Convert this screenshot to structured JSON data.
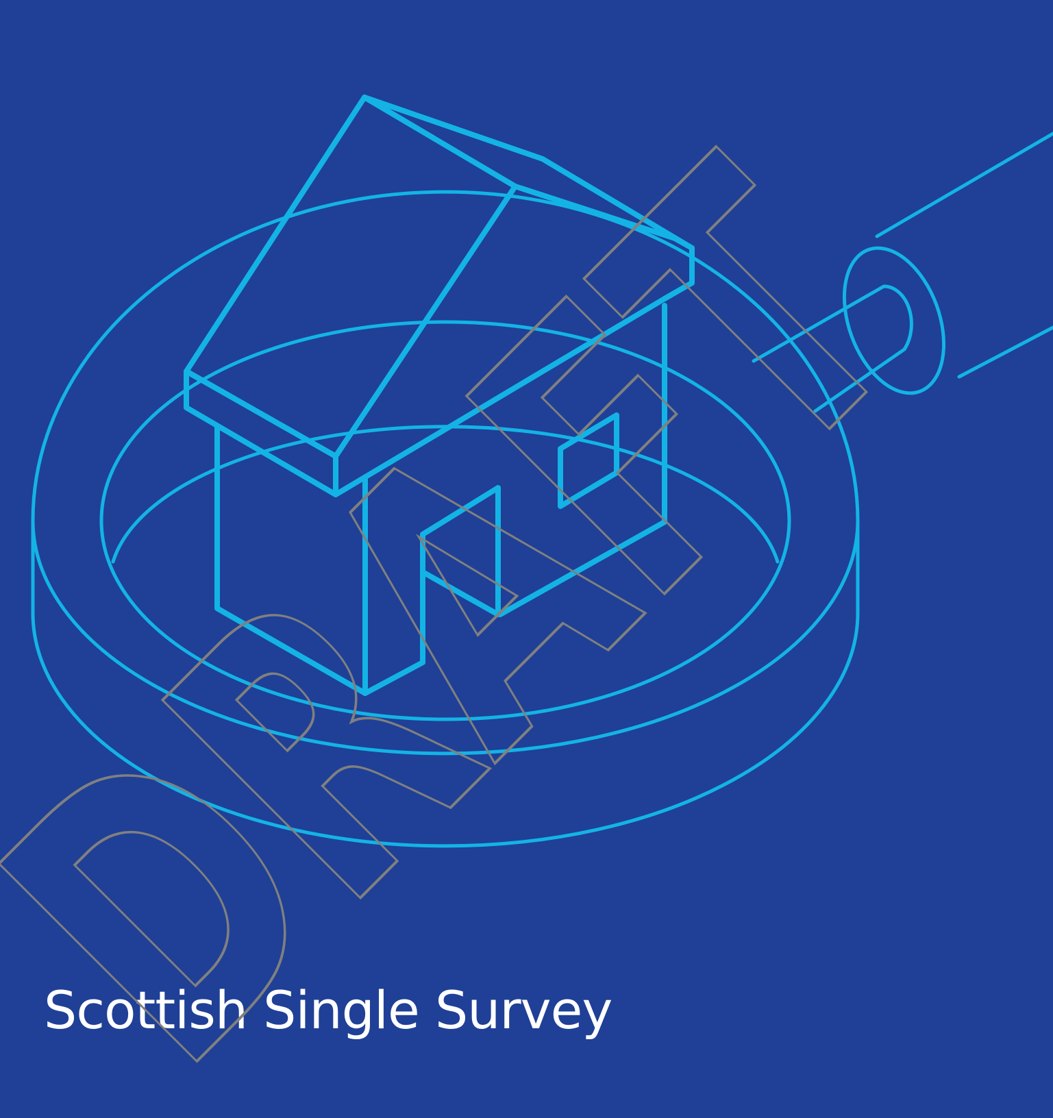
{
  "document": {
    "title": "Scottish Single Survey",
    "watermark_text": "DRAFT"
  },
  "colors": {
    "background": "#1f4096",
    "illustration_line": "#14b3e6",
    "title_text": "#ffffff",
    "watermark_stroke": "#808080"
  },
  "icons": {
    "illustration": "house-under-magnifying-glass-illustration",
    "watermark": "draft-watermark-outline"
  }
}
